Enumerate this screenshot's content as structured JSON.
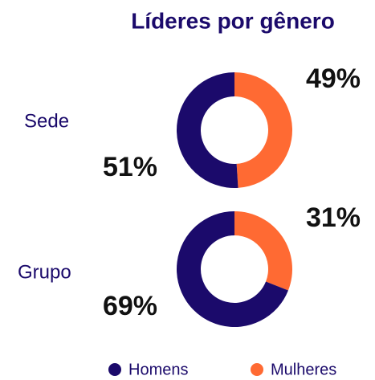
{
  "title": "Líderes por gênero",
  "chart_data": [
    {
      "type": "donut",
      "label": "Sede",
      "categories": [
        "Homens",
        "Mulheres"
      ],
      "values": [
        51,
        49
      ],
      "value_labels": [
        "51%",
        "49%"
      ],
      "colors": [
        "#1b0a6b",
        "#ff6a33"
      ]
    },
    {
      "type": "donut",
      "label": "Grupo",
      "categories": [
        "Homens",
        "Mulheres"
      ],
      "values": [
        69,
        31
      ],
      "value_labels": [
        "69%",
        "31%"
      ],
      "colors": [
        "#1b0a6b",
        "#ff6a33"
      ]
    }
  ]
}
